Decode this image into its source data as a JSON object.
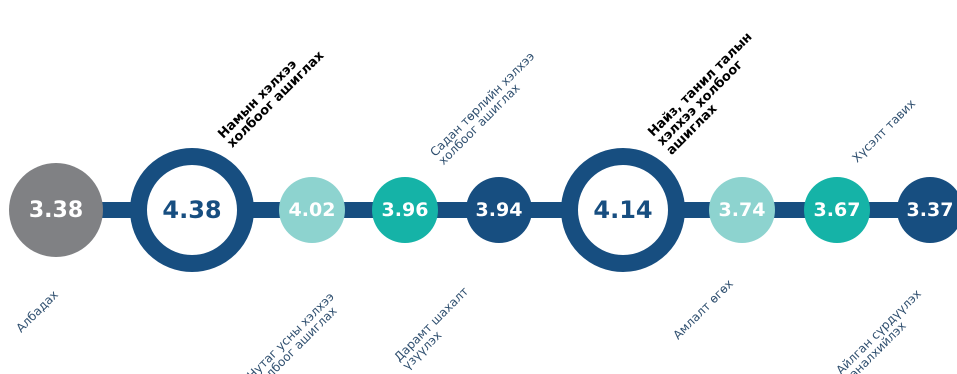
{
  "nodes": [
    {
      "value": "3.38",
      "color": "#808184",
      "style": "filled"
    },
    {
      "value": "4.38",
      "color": "#174e80",
      "style": "ring"
    },
    {
      "value": "4.02",
      "color": "#8dd3cf",
      "style": "filled"
    },
    {
      "value": "3.96",
      "color": "#15b3a7",
      "style": "filled"
    },
    {
      "value": "3.94",
      "color": "#174e80",
      "style": "filled"
    },
    {
      "value": "4.14",
      "color": "#174e80",
      "style": "ring"
    },
    {
      "value": "3.74",
      "color": "#8dd3cf",
      "style": "filled"
    },
    {
      "value": "3.67",
      "color": "#15b3a7",
      "style": "filled"
    },
    {
      "value": "3.37",
      "color": "#174e80",
      "style": "filled"
    }
  ],
  "labels": [
    {
      "lines": [
        "Албадах"
      ],
      "bold": false,
      "side": "below"
    },
    {
      "lines": [
        "Намын хэлхээ",
        "холбоог ашиглах"
      ],
      "bold": true,
      "side": "above"
    },
    {
      "lines": [
        "Нутаг усны хэлхээ",
        "холбоог ашиглах"
      ],
      "bold": false,
      "side": "below"
    },
    {
      "lines": [
        "Садан төрлийн хэлхээ",
        "холбоог ашиглах"
      ],
      "bold": false,
      "side": "above"
    },
    {
      "lines": [
        "Дарамт шахалт",
        "үзүүлэх"
      ],
      "bold": false,
      "side": "below"
    },
    {
      "lines": [
        "Найз, танил талын",
        "хэлхээ холбоог",
        "ашиглах"
      ],
      "bold": true,
      "side": "above"
    },
    {
      "lines": [
        "Амлалт өгөх"
      ],
      "bold": false,
      "side": "below"
    },
    {
      "lines": [
        "Хүсэлт тавих"
      ],
      "bold": false,
      "side": "above"
    },
    {
      "lines": [
        "Айлган сүрдүүлэх",
        "заналхийлэх"
      ],
      "bold": false,
      "side": "below"
    }
  ]
}
